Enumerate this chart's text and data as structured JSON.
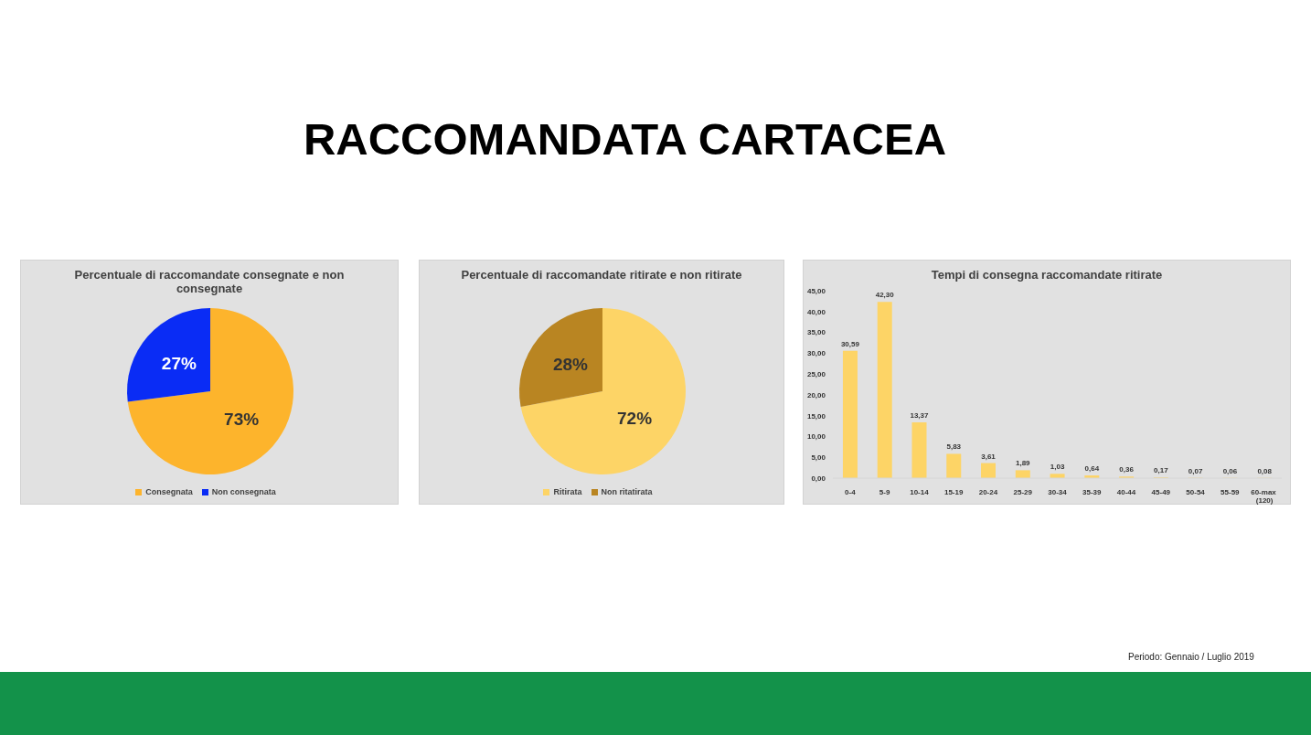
{
  "chart_data": [
    {
      "type": "other",
      "title": "RACCOMANDATA CARTACEA"
    },
    {
      "type": "pie",
      "title": "Percentuale di raccomandate consegnate e non consegnate",
      "categories": [
        "Consegnata",
        "Non consegnata"
      ],
      "values": [
        73,
        27
      ],
      "colors": [
        "#fdb42c",
        "#0a2cf5"
      ],
      "value_labels": [
        "73%",
        "27%"
      ],
      "legend": "bottom"
    },
    {
      "type": "pie",
      "title": "Percentuale di raccomandate ritirate e non ritirate",
      "categories": [
        "Ritirata",
        "Non ritatirata"
      ],
      "values": [
        72,
        28
      ],
      "colors": [
        "#fdd466",
        "#b98522"
      ],
      "value_labels": [
        "72%",
        "28%"
      ],
      "legend": "bottom"
    },
    {
      "type": "bar",
      "title": "Tempi di consegna raccomandate ritirate",
      "categories": [
        "0-4",
        "5-9",
        "10-14",
        "15-19",
        "20-24",
        "25-29",
        "30-34",
        "35-39",
        "40-44",
        "45-49",
        "50-54",
        "55-59",
        "60-max (120)"
      ],
      "values": [
        30.59,
        42.3,
        13.37,
        5.83,
        3.61,
        1.89,
        1.03,
        0.64,
        0.36,
        0.17,
        0.07,
        0.06,
        0.08
      ],
      "color": "#fdd466",
      "value_labels": [
        "30,59",
        "42,30",
        "13,37",
        "5,83",
        "3,61",
        "1,89",
        "1,03",
        "0,64",
        "0,36",
        "0,17",
        "0,07",
        "0,06",
        "0,08"
      ],
      "ylim": [
        0,
        45
      ],
      "yticks": [
        {
          "value": 0,
          "label": "0,00"
        },
        {
          "value": 5,
          "label": "5,00"
        },
        {
          "value": 10,
          "label": "10,00"
        },
        {
          "value": 15,
          "label": "15,00"
        },
        {
          "value": 20,
          "label": "20,00"
        },
        {
          "value": 25,
          "label": "25,00"
        },
        {
          "value": 30,
          "label": "30,00"
        },
        {
          "value": 35,
          "label": "35,00"
        },
        {
          "value": 40,
          "label": "40,00"
        },
        {
          "value": 45,
          "label": "45,00"
        }
      ]
    },
    {
      "type": "other",
      "annotations": [
        "Periodo: Gennaio / Luglio 2019"
      ]
    }
  ]
}
